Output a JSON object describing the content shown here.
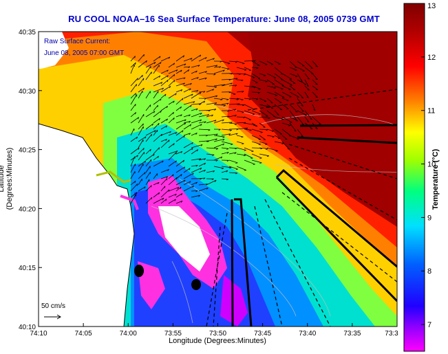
{
  "title": "RU COOL  NOAA–16  Sea Surface Temperature:  June 08, 2005 0739 GMT",
  "annotation": {
    "line1": "Raw Surface Current:",
    "line2": "June 08, 2005 07:00 GMT"
  },
  "scale": {
    "label": "50 cm/s"
  },
  "axes": {
    "xlabel": "Longitude (Degrees:Minutes)",
    "ylabel": "Latitude (Degrees:Minutes)",
    "x_ticks": [
      "74:10",
      "74:05",
      "74:00",
      "73:55",
      "73:50",
      "73:45",
      "73:40",
      "73:35",
      "73:3"
    ],
    "y_ticks": [
      "40:35",
      "40:30",
      "40:25",
      "40:20",
      "40:15",
      "40:10"
    ]
  },
  "colorbar": {
    "label": "Temperature (°C)",
    "min": 6.5,
    "max": 13,
    "ticks": [
      "13",
      "12",
      "11",
      "10",
      "9",
      "8",
      "7"
    ],
    "colors": [
      "#ff00ff",
      "#8000ff",
      "#0000ff",
      "#0080ff",
      "#00ffff",
      "#00ff80",
      "#80ff00",
      "#ffff00",
      "#ff8000",
      "#ff0000",
      "#a00000",
      "#7a0000"
    ]
  },
  "colors": {
    "title": "#0000cc",
    "land": "#ffffff",
    "warm": "#a80000",
    "cold": "#0040ff"
  }
}
